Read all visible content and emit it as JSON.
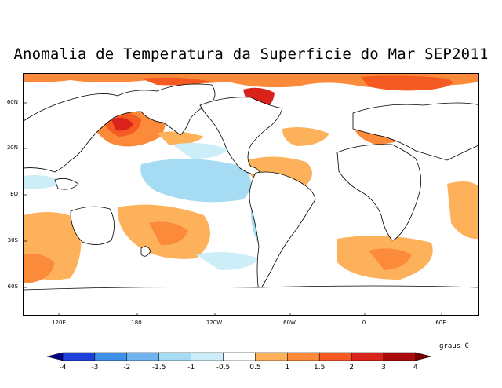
{
  "title": "Anomalia de Temperatura da Superficie do Mar SEP2011",
  "map": {
    "lat_labels": [
      "60N",
      "30N",
      "EQ",
      "30S",
      "60S"
    ],
    "lon_labels": [
      "120E",
      "180",
      "120W",
      "60W",
      "0",
      "60E"
    ]
  },
  "legend": {
    "units": "graus C",
    "labels": [
      "-4",
      "-3",
      "-2",
      "-1.5",
      "-1",
      "-0.5",
      "0.5",
      "1",
      "1.5",
      "2",
      "3",
      "4"
    ],
    "colors": [
      "#00008b",
      "#1e3fd8",
      "#3f8fe8",
      "#6fb4f0",
      "#a6dcf3",
      "#cceef8",
      "#ffffff",
      "#fdb15a",
      "#fb8a3a",
      "#f45a22",
      "#d8221a",
      "#a80a0a",
      "#7a0000"
    ]
  }
}
